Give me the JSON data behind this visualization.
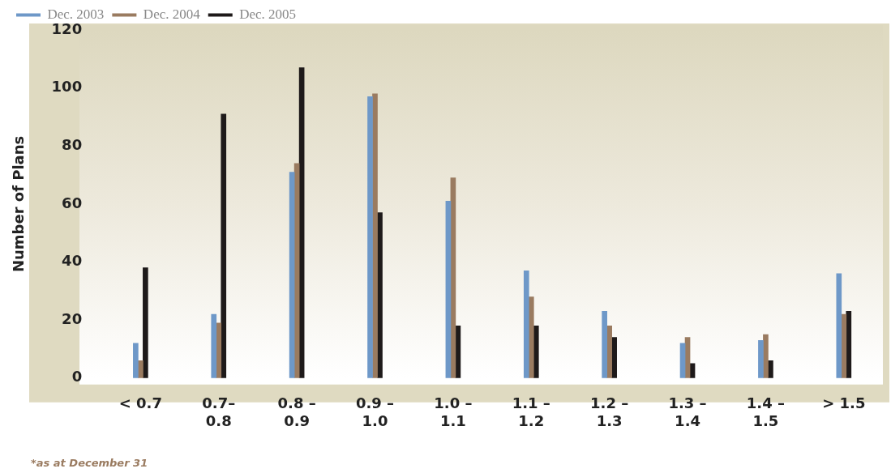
{
  "chart_data": {
    "type": "bar",
    "categories": [
      "< 0.7",
      "0.7–\n0.8",
      "0.8 –\n0.9",
      "0.9 –\n1.0",
      "1.0 –\n1.1",
      "1.1 –\n1.2",
      "1.2 –\n1.3",
      "1.3 –\n1.4",
      "1.4 –\n1.5",
      "> 1.5"
    ],
    "series": [
      {
        "name": "Dec. 2003",
        "color": "#6e98c8",
        "values": [
          12,
          22,
          71,
          97,
          61,
          37,
          23,
          12,
          13,
          36
        ]
      },
      {
        "name": "Dec. 2004",
        "color": "#9a7b60",
        "values": [
          6,
          19,
          74,
          98,
          69,
          28,
          18,
          14,
          15,
          22
        ]
      },
      {
        "name": "Dec. 2005",
        "color": "#1e1a1a",
        "values": [
          38,
          91,
          107,
          57,
          18,
          18,
          14,
          5,
          6,
          23
        ]
      }
    ],
    "ylabel": "Number of Plans",
    "ylim": [
      0,
      120
    ],
    "yticks": [
      0,
      20,
      40,
      60,
      80,
      100,
      120
    ],
    "grid": false,
    "legend": "top left",
    "annotations": [
      "*as at December 31"
    ]
  }
}
